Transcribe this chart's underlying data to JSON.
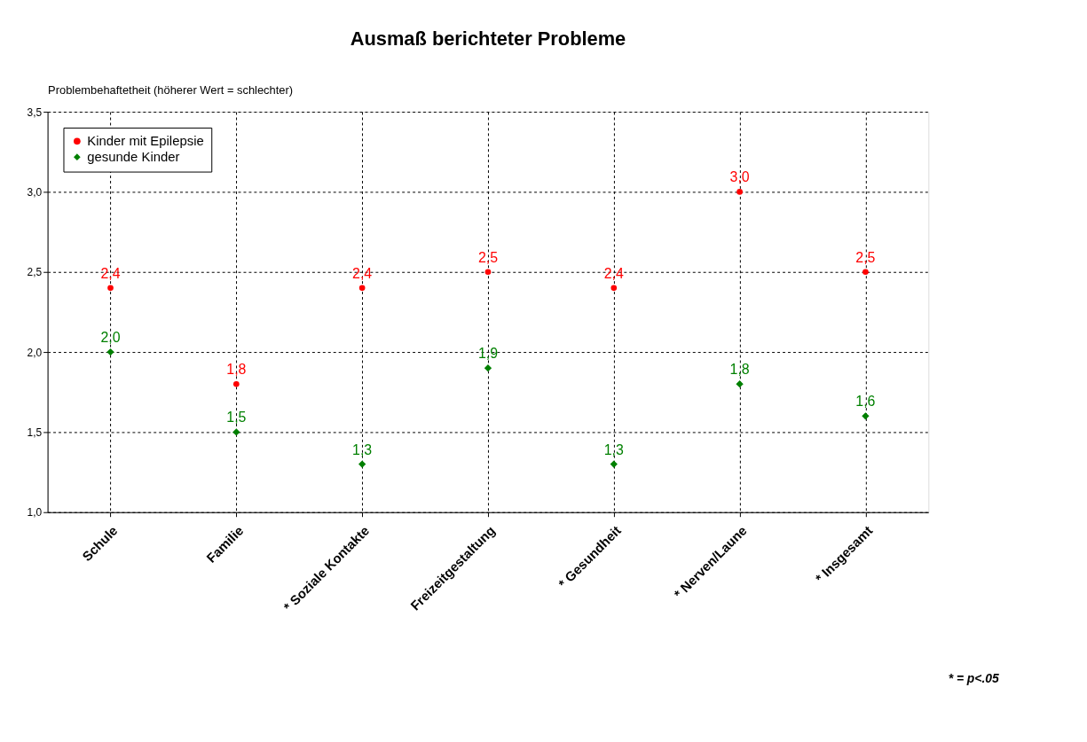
{
  "chart_data": {
    "type": "scatter",
    "title": "Ausmaß berichteter Probleme",
    "ylabel": "Problembehaftetheit (höherer Wert = schlechter)",
    "categories": [
      "Schule",
      "Familie",
      "* Soziale Kontakte",
      "Freizeitgestaltung",
      "* Gesundheit",
      "* Nerven/Laune",
      "* Insgesamt"
    ],
    "series": [
      {
        "name": "Kinder mit Epilepsie",
        "color": "#ff0000",
        "marker": "circle",
        "values": [
          2.4,
          1.8,
          2.4,
          2.5,
          2.4,
          3.0,
          2.5
        ],
        "value_labels": [
          "2,4",
          "1,8",
          "2,4",
          "2,5",
          "2,4",
          "3,0",
          "2,5"
        ]
      },
      {
        "name": "gesunde Kinder",
        "color": "#008000",
        "marker": "diamond",
        "values": [
          2.0,
          1.5,
          1.3,
          1.9,
          1.3,
          1.8,
          1.6
        ],
        "value_labels": [
          "2,0",
          "1,5",
          "1,3",
          "1,9",
          "1,3",
          "1,8",
          "1,6"
        ]
      }
    ],
    "ylim": [
      1.0,
      3.5
    ],
    "yticks": [
      {
        "value": 1.0,
        "label": "1,0"
      },
      {
        "value": 1.5,
        "label": "1,5"
      },
      {
        "value": 2.0,
        "label": "2,0"
      },
      {
        "value": 2.5,
        "label": "2,5"
      },
      {
        "value": 3.0,
        "label": "3,0"
      },
      {
        "value": 3.5,
        "label": "3,5"
      }
    ],
    "grid": true,
    "legend": "top left",
    "annotations": [
      "* = p<.05"
    ]
  }
}
